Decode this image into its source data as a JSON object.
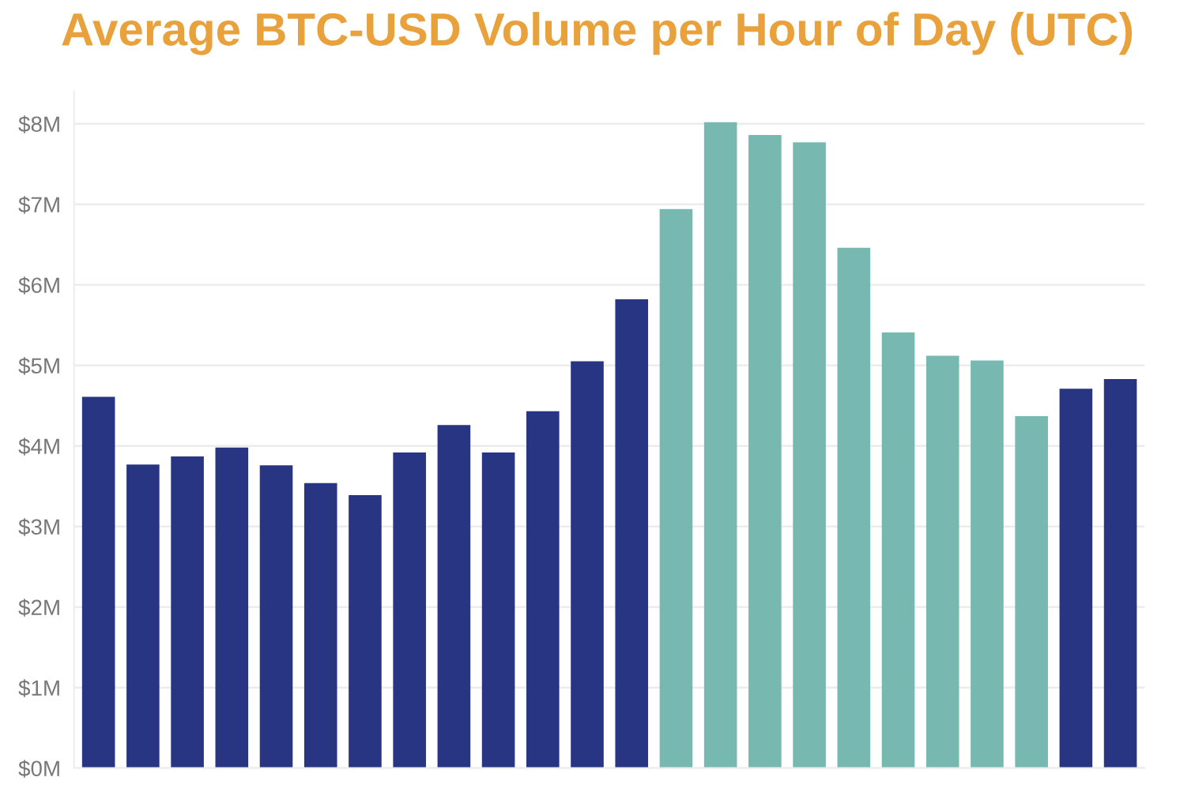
{
  "chart_data": {
    "type": "bar",
    "title": "Average BTC-USD Volume per Hour of Day (UTC)",
    "categories": [
      null,
      null,
      null,
      null,
      null,
      null,
      null,
      null,
      null,
      null,
      null,
      null,
      null,
      null,
      null,
      null,
      null,
      null,
      null,
      null,
      null,
      null,
      null,
      null
    ],
    "values": [
      4.61,
      3.77,
      3.87,
      3.98,
      3.76,
      3.54,
      3.39,
      3.92,
      4.26,
      3.92,
      4.43,
      5.05,
      5.82,
      6.94,
      8.02,
      7.86,
      7.77,
      6.46,
      5.41,
      5.12,
      5.06,
      4.37,
      4.71,
      4.83
    ],
    "colors": [
      "#283583",
      "#283583",
      "#283583",
      "#283583",
      "#283583",
      "#283583",
      "#283583",
      "#283583",
      "#283583",
      "#283583",
      "#283583",
      "#283583",
      "#283583",
      "#77b8b1",
      "#77b8b1",
      "#77b8b1",
      "#77b8b1",
      "#77b8b1",
      "#77b8b1",
      "#77b8b1",
      "#77b8b1",
      "#77b8b1",
      "#283583",
      "#283583"
    ],
    "ylim": [
      0,
      8.4
    ],
    "yticks": [
      {
        "value": 0,
        "label": "$0M"
      },
      {
        "value": 1,
        "label": "$1M"
      },
      {
        "value": 2,
        "label": "$2M"
      },
      {
        "value": 3,
        "label": "$3M"
      },
      {
        "value": 4,
        "label": "$4M"
      },
      {
        "value": 5,
        "label": "$5M"
      },
      {
        "value": 6,
        "label": "$6M"
      },
      {
        "value": 7,
        "label": "$7M"
      },
      {
        "value": 8,
        "label": "$8M"
      }
    ],
    "grid": "y",
    "legend": false
  }
}
